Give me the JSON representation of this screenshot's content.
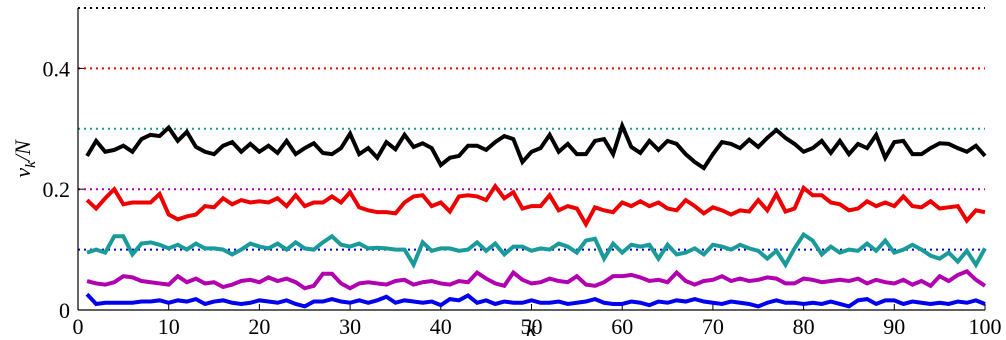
{
  "chart_data": {
    "type": "line",
    "xlabel": "k",
    "ylabel": {
      "base": "v",
      "sub": "k",
      "rest": "/N"
    },
    "xlim": [
      0,
      100
    ],
    "ylim": [
      0,
      0.5
    ],
    "xticks": [
      0,
      10,
      20,
      30,
      40,
      50,
      60,
      70,
      80,
      90,
      100
    ],
    "yticks": [
      0,
      0.2,
      0.4
    ],
    "reference_lines": [
      {
        "value": 0.1,
        "color": "#0000cc"
      },
      {
        "value": 0.2,
        "color": "#b000b0"
      },
      {
        "value": 0.3,
        "color": "#1a9a9a"
      },
      {
        "value": 0.4,
        "color": "#ee0000"
      },
      {
        "value": 0.5,
        "color": "#000000"
      }
    ],
    "x": [
      1,
      2,
      3,
      4,
      5,
      6,
      7,
      8,
      9,
      10,
      11,
      12,
      13,
      14,
      15,
      16,
      17,
      18,
      19,
      20,
      21,
      22,
      23,
      24,
      25,
      26,
      27,
      28,
      29,
      30,
      31,
      32,
      33,
      34,
      35,
      36,
      37,
      38,
      39,
      40,
      41,
      42,
      43,
      44,
      45,
      46,
      47,
      48,
      49,
      50,
      51,
      52,
      53,
      54,
      55,
      56,
      57,
      58,
      59,
      60,
      61,
      62,
      63,
      64,
      65,
      66,
      67,
      68,
      69,
      70,
      71,
      72,
      73,
      74,
      75,
      76,
      77,
      78,
      79,
      80,
      81,
      82,
      83,
      84,
      85,
      86,
      87,
      88,
      89,
      90,
      91,
      92,
      93,
      94,
      95,
      96,
      97,
      98,
      99,
      100
    ],
    "series": [
      {
        "color": "#000000",
        "values": [
          0.255,
          0.28,
          0.262,
          0.265,
          0.272,
          0.262,
          0.283,
          0.29,
          0.288,
          0.302,
          0.28,
          0.295,
          0.27,
          0.262,
          0.258,
          0.272,
          0.278,
          0.262,
          0.275,
          0.262,
          0.272,
          0.26,
          0.28,
          0.258,
          0.268,
          0.276,
          0.26,
          0.258,
          0.268,
          0.292,
          0.258,
          0.268,
          0.252,
          0.278,
          0.266,
          0.29,
          0.27,
          0.276,
          0.268,
          0.24,
          0.252,
          0.255,
          0.272,
          0.272,
          0.265,
          0.278,
          0.288,
          0.283,
          0.245,
          0.262,
          0.268,
          0.29,
          0.262,
          0.275,
          0.258,
          0.258,
          0.28,
          0.283,
          0.258,
          0.305,
          0.27,
          0.26,
          0.28,
          0.265,
          0.28,
          0.275,
          0.258,
          0.245,
          0.235,
          0.258,
          0.278,
          0.275,
          0.268,
          0.282,
          0.27,
          0.285,
          0.298,
          0.285,
          0.275,
          0.262,
          0.268,
          0.28,
          0.26,
          0.28,
          0.258,
          0.275,
          0.268,
          0.29,
          0.252,
          0.278,
          0.28,
          0.258,
          0.258,
          0.268,
          0.276,
          0.275,
          0.268,
          0.262,
          0.272,
          0.255
        ]
      },
      {
        "color": "#ee0000",
        "values": [
          0.182,
          0.168,
          0.185,
          0.2,
          0.175,
          0.178,
          0.178,
          0.178,
          0.192,
          0.158,
          0.15,
          0.155,
          0.158,
          0.172,
          0.17,
          0.185,
          0.175,
          0.182,
          0.178,
          0.18,
          0.178,
          0.185,
          0.172,
          0.19,
          0.172,
          0.178,
          0.178,
          0.188,
          0.178,
          0.195,
          0.17,
          0.165,
          0.162,
          0.162,
          0.16,
          0.178,
          0.188,
          0.19,
          0.172,
          0.178,
          0.163,
          0.188,
          0.19,
          0.188,
          0.182,
          0.205,
          0.185,
          0.195,
          0.168,
          0.172,
          0.172,
          0.19,
          0.165,
          0.172,
          0.168,
          0.142,
          0.17,
          0.165,
          0.162,
          0.178,
          0.172,
          0.18,
          0.172,
          0.178,
          0.168,
          0.165,
          0.182,
          0.172,
          0.16,
          0.17,
          0.165,
          0.158,
          0.165,
          0.163,
          0.182,
          0.165,
          0.192,
          0.163,
          0.168,
          0.202,
          0.19,
          0.19,
          0.178,
          0.175,
          0.165,
          0.168,
          0.18,
          0.172,
          0.178,
          0.172,
          0.188,
          0.172,
          0.17,
          0.18,
          0.168,
          0.17,
          0.172,
          0.148,
          0.165,
          0.162
        ]
      },
      {
        "color": "#1a9a9a",
        "values": [
          0.095,
          0.1,
          0.095,
          0.122,
          0.122,
          0.092,
          0.11,
          0.112,
          0.108,
          0.102,
          0.108,
          0.1,
          0.11,
          0.102,
          0.102,
          0.1,
          0.092,
          0.1,
          0.11,
          0.105,
          0.102,
          0.11,
          0.1,
          0.112,
          0.102,
          0.1,
          0.112,
          0.122,
          0.108,
          0.105,
          0.11,
          0.102,
          0.103,
          0.102,
          0.1,
          0.1,
          0.075,
          0.112,
          0.098,
          0.102,
          0.102,
          0.098,
          0.1,
          0.112,
          0.098,
          0.11,
          0.092,
          0.105,
          0.105,
          0.098,
          0.102,
          0.1,
          0.11,
          0.105,
          0.095,
          0.115,
          0.118,
          0.085,
          0.11,
          0.095,
          0.108,
          0.105,
          0.108,
          0.085,
          0.108,
          0.092,
          0.095,
          0.102,
          0.092,
          0.108,
          0.105,
          0.1,
          0.108,
          0.102,
          0.098,
          0.085,
          0.098,
          0.075,
          0.102,
          0.125,
          0.115,
          0.092,
          0.105,
          0.095,
          0.1,
          0.098,
          0.11,
          0.098,
          0.115,
          0.095,
          0.1,
          0.108,
          0.1,
          0.09,
          0.085,
          0.095,
          0.08,
          0.098,
          0.075,
          0.102
        ]
      },
      {
        "color": "#b000b0",
        "values": [
          0.048,
          0.044,
          0.042,
          0.046,
          0.056,
          0.054,
          0.048,
          0.046,
          0.044,
          0.042,
          0.056,
          0.046,
          0.052,
          0.044,
          0.046,
          0.038,
          0.042,
          0.048,
          0.05,
          0.046,
          0.054,
          0.048,
          0.052,
          0.046,
          0.036,
          0.04,
          0.06,
          0.06,
          0.044,
          0.036,
          0.044,
          0.046,
          0.044,
          0.042,
          0.048,
          0.05,
          0.042,
          0.046,
          0.048,
          0.044,
          0.042,
          0.048,
          0.046,
          0.062,
          0.052,
          0.044,
          0.04,
          0.062,
          0.05,
          0.044,
          0.046,
          0.052,
          0.048,
          0.046,
          0.056,
          0.042,
          0.04,
          0.046,
          0.056,
          0.056,
          0.058,
          0.054,
          0.048,
          0.05,
          0.046,
          0.062,
          0.048,
          0.042,
          0.048,
          0.05,
          0.056,
          0.048,
          0.052,
          0.048,
          0.05,
          0.054,
          0.052,
          0.044,
          0.044,
          0.052,
          0.05,
          0.046,
          0.048,
          0.05,
          0.048,
          0.052,
          0.044,
          0.05,
          0.046,
          0.044,
          0.05,
          0.042,
          0.048,
          0.04,
          0.056,
          0.048,
          0.058,
          0.064,
          0.05,
          0.04
        ]
      },
      {
        "color": "#0000ee",
        "values": [
          0.026,
          0.01,
          0.012,
          0.012,
          0.012,
          0.012,
          0.014,
          0.014,
          0.016,
          0.012,
          0.016,
          0.014,
          0.018,
          0.01,
          0.014,
          0.016,
          0.012,
          0.01,
          0.012,
          0.016,
          0.014,
          0.012,
          0.016,
          0.01,
          0.006,
          0.014,
          0.014,
          0.018,
          0.014,
          0.012,
          0.016,
          0.012,
          0.016,
          0.022,
          0.012,
          0.016,
          0.014,
          0.012,
          0.014,
          0.008,
          0.018,
          0.016,
          0.024,
          0.012,
          0.016,
          0.01,
          0.014,
          0.012,
          0.012,
          0.016,
          0.012,
          0.012,
          0.014,
          0.01,
          0.012,
          0.014,
          0.018,
          0.012,
          0.01,
          0.01,
          0.014,
          0.012,
          0.008,
          0.014,
          0.012,
          0.016,
          0.014,
          0.018,
          0.014,
          0.012,
          0.01,
          0.014,
          0.012,
          0.01,
          0.006,
          0.012,
          0.016,
          0.012,
          0.012,
          0.01,
          0.012,
          0.01,
          0.014,
          0.01,
          0.006,
          0.016,
          0.018,
          0.01,
          0.016,
          0.016,
          0.01,
          0.014,
          0.012,
          0.01,
          0.012,
          0.01,
          0.014,
          0.012,
          0.016,
          0.01
        ]
      }
    ]
  }
}
